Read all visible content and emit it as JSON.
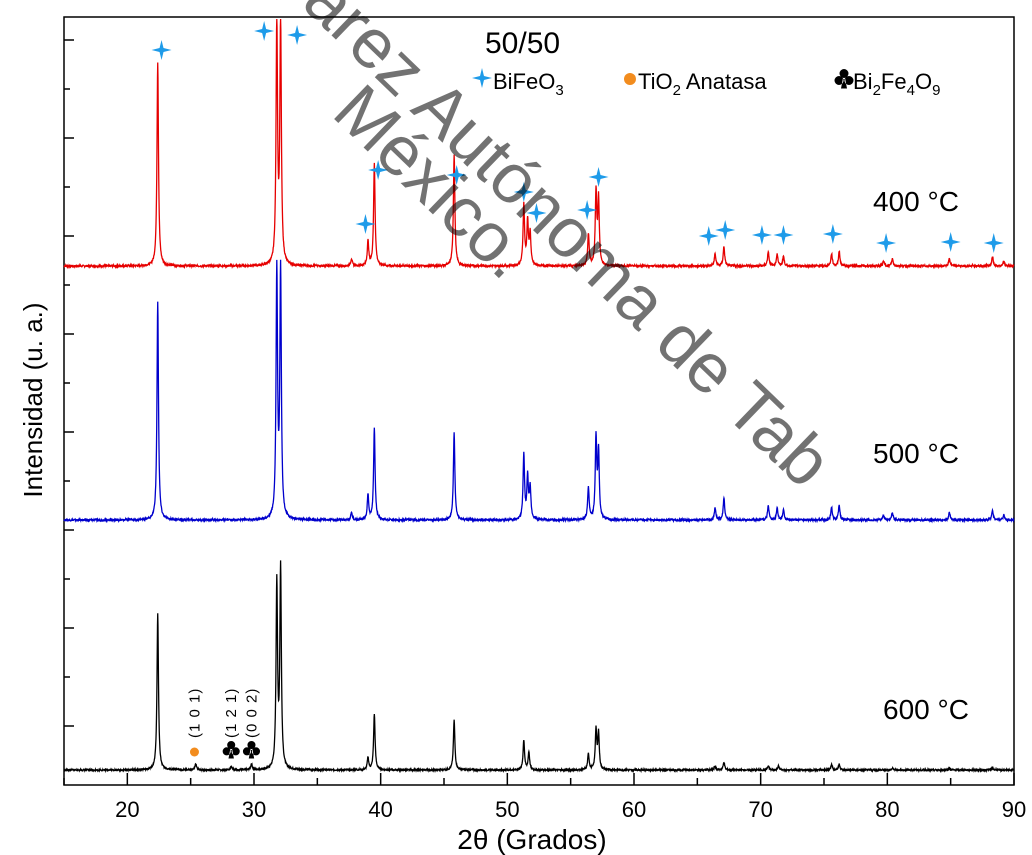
{
  "chart_data": {
    "type": "line",
    "xlabel": "2θ (Grados)",
    "ylabel": "Intensidad (u. a.)",
    "xlim": [
      15,
      90
    ],
    "x_ticks": [
      20,
      30,
      40,
      50,
      60,
      70,
      80,
      90
    ],
    "y_ticks_visible": false,
    "title": "50/50",
    "legend": [
      {
        "symbol": "star",
        "color": "#1E9BE9",
        "label": "BiFeO",
        "sub": "3",
        "tail": ""
      },
      {
        "symbol": "circle",
        "color": "#F28C1E",
        "label": "TiO",
        "sub": "2",
        "tail": " Anatasa"
      },
      {
        "symbol": "club",
        "color": "#000000",
        "label": "Bi",
        "sub": "2",
        "tail": "Fe",
        "sub2": "4",
        "tail2": "O",
        "sub3": "9"
      }
    ],
    "series": [
      {
        "name": "400 °C",
        "color": "#E60000",
        "peaks": [
          {
            "x": 22.4,
            "h": 0.84
          },
          {
            "x": 31.8,
            "h": 1.0
          },
          {
            "x": 32.1,
            "h": 1.0
          },
          {
            "x": 37.7,
            "h": 0.03
          },
          {
            "x": 39.0,
            "h": 0.1
          },
          {
            "x": 39.5,
            "h": 0.42
          },
          {
            "x": 45.8,
            "h": 0.46
          },
          {
            "x": 51.3,
            "h": 0.25
          },
          {
            "x": 51.6,
            "h": 0.18
          },
          {
            "x": 51.8,
            "h": 0.13
          },
          {
            "x": 56.4,
            "h": 0.13
          },
          {
            "x": 57.0,
            "h": 0.3
          },
          {
            "x": 57.2,
            "h": 0.27
          },
          {
            "x": 66.4,
            "h": 0.05
          },
          {
            "x": 67.1,
            "h": 0.08
          },
          {
            "x": 70.6,
            "h": 0.06
          },
          {
            "x": 71.3,
            "h": 0.05
          },
          {
            "x": 71.8,
            "h": 0.04
          },
          {
            "x": 75.6,
            "h": 0.05
          },
          {
            "x": 76.2,
            "h": 0.06
          },
          {
            "x": 79.7,
            "h": 0.02
          },
          {
            "x": 80.4,
            "h": 0.03
          },
          {
            "x": 84.9,
            "h": 0.03
          },
          {
            "x": 88.3,
            "h": 0.04
          },
          {
            "x": 89.2,
            "h": 0.02
          }
        ],
        "star_markers": [
          22.7,
          30.8,
          33.4,
          38.8,
          39.8,
          46.0,
          51.3,
          52.3,
          56.3,
          57.2,
          65.9,
          67.2,
          70.1,
          71.8,
          75.7,
          79.9,
          85.0,
          88.4
        ]
      },
      {
        "name": "500 °C",
        "color": "#0000CC",
        "peaks": [
          {
            "x": 22.4,
            "h": 0.88
          },
          {
            "x": 31.8,
            "h": 1.0
          },
          {
            "x": 32.1,
            "h": 1.0
          },
          {
            "x": 37.7,
            "h": 0.03
          },
          {
            "x": 39.0,
            "h": 0.1
          },
          {
            "x": 39.5,
            "h": 0.37
          },
          {
            "x": 45.8,
            "h": 0.35
          },
          {
            "x": 51.3,
            "h": 0.26
          },
          {
            "x": 51.6,
            "h": 0.17
          },
          {
            "x": 51.8,
            "h": 0.13
          },
          {
            "x": 56.4,
            "h": 0.13
          },
          {
            "x": 57.0,
            "h": 0.33
          },
          {
            "x": 57.2,
            "h": 0.27
          },
          {
            "x": 66.4,
            "h": 0.05
          },
          {
            "x": 67.1,
            "h": 0.09
          },
          {
            "x": 70.6,
            "h": 0.06
          },
          {
            "x": 71.3,
            "h": 0.05
          },
          {
            "x": 71.8,
            "h": 0.04
          },
          {
            "x": 75.6,
            "h": 0.05
          },
          {
            "x": 76.2,
            "h": 0.06
          },
          {
            "x": 79.7,
            "h": 0.02
          },
          {
            "x": 80.4,
            "h": 0.03
          },
          {
            "x": 84.9,
            "h": 0.03
          },
          {
            "x": 88.3,
            "h": 0.04
          },
          {
            "x": 89.2,
            "h": 0.02
          }
        ]
      },
      {
        "name": "600 °C",
        "color": "#000000",
        "peaks": [
          {
            "x": 22.4,
            "h": 0.78
          },
          {
            "x": 25.4,
            "h": 0.03
          },
          {
            "x": 28.2,
            "h": 0.02
          },
          {
            "x": 29.8,
            "h": 0.03
          },
          {
            "x": 31.8,
            "h": 0.93
          },
          {
            "x": 32.1,
            "h": 1.0
          },
          {
            "x": 39.0,
            "h": 0.06
          },
          {
            "x": 39.5,
            "h": 0.28
          },
          {
            "x": 45.8,
            "h": 0.25
          },
          {
            "x": 51.3,
            "h": 0.15
          },
          {
            "x": 51.7,
            "h": 0.09
          },
          {
            "x": 56.4,
            "h": 0.08
          },
          {
            "x": 57.0,
            "h": 0.2
          },
          {
            "x": 57.2,
            "h": 0.18
          },
          {
            "x": 66.4,
            "h": 0.02
          },
          {
            "x": 67.1,
            "h": 0.04
          },
          {
            "x": 70.6,
            "h": 0.02
          },
          {
            "x": 71.4,
            "h": 0.02
          },
          {
            "x": 75.6,
            "h": 0.03
          },
          {
            "x": 76.2,
            "h": 0.03
          },
          {
            "x": 80.4,
            "h": 0.01
          },
          {
            "x": 84.9,
            "h": 0.01
          },
          {
            "x": 88.3,
            "h": 0.01
          }
        ],
        "markers": [
          {
            "symbol": "circle",
            "x": 25.3,
            "color": "#F28C1E",
            "hkl": "(1 0 1)"
          },
          {
            "symbol": "club",
            "x": 28.2,
            "color": "#000000",
            "hkl": "(1 2 1)"
          },
          {
            "symbol": "club",
            "x": 29.8,
            "color": "#000000",
            "hkl": "(0 0 2)"
          }
        ]
      }
    ]
  },
  "watermark": {
    "text_a": "árez Autónoma de Tab",
    "text_b": "México."
  }
}
